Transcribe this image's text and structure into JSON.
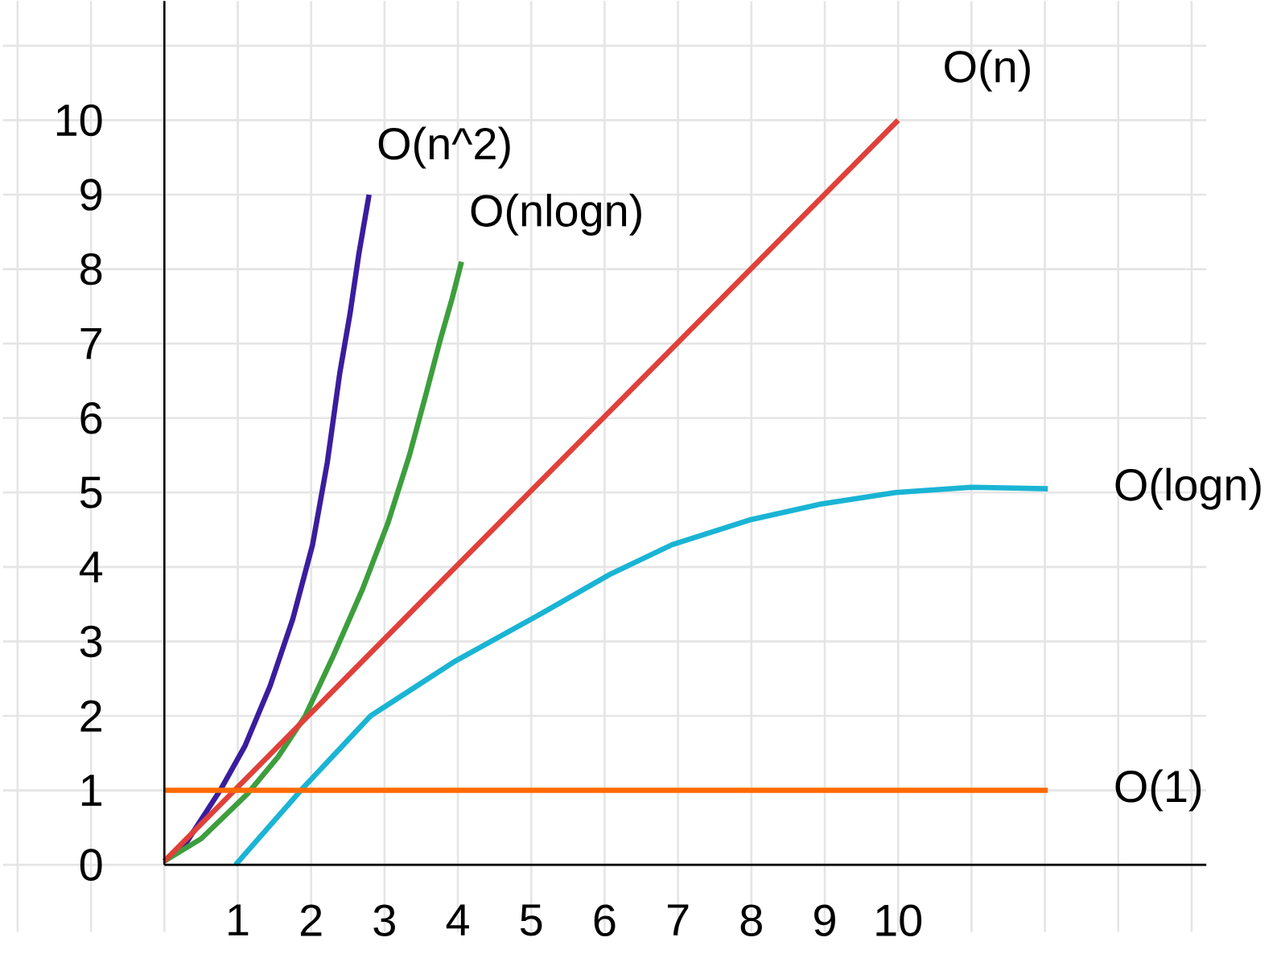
{
  "chart_data": {
    "type": "line",
    "xlim": [
      -2.2,
      14.2
    ],
    "ylim": [
      -0.9,
      11.6
    ],
    "xticks": [
      {
        "value": -2,
        "label": null
      },
      {
        "value": -1,
        "label": null
      },
      {
        "value": 0,
        "label": null
      },
      1,
      2,
      3,
      4,
      5,
      6,
      7,
      8,
      9,
      10,
      {
        "value": 11,
        "label": null
      },
      {
        "value": 12,
        "label": null
      },
      {
        "value": 13,
        "label": null
      },
      {
        "value": 14,
        "label": null
      }
    ],
    "yticks": [
      0,
      1,
      2,
      3,
      4,
      5,
      6,
      7,
      8,
      9,
      10,
      {
        "value": 11,
        "label": null
      }
    ],
    "grid": true,
    "legend": false,
    "marker": "none",
    "line_style": "solid",
    "series": [
      {
        "name": "O(n^2)",
        "color": "#3a1d9e",
        "x": [
          0,
          0.3,
          0.76,
          1.1,
          1.44,
          1.75,
          2.02,
          2.22,
          2.39,
          2.53,
          2.65,
          2.79
        ],
        "values": [
          0.05,
          0.3,
          1.0,
          1.6,
          2.4,
          3.3,
          4.3,
          5.4,
          6.6,
          7.4,
          8.2,
          9.0
        ]
      },
      {
        "name": "O(nlogn)",
        "color": "#3d9e3d",
        "x": [
          0,
          0.5,
          1.13,
          1.55,
          1.92,
          2.3,
          2.7,
          3.05,
          3.34,
          3.56,
          3.76,
          3.92,
          4.05
        ],
        "values": [
          0.05,
          0.35,
          0.95,
          1.45,
          2.0,
          2.8,
          3.7,
          4.6,
          5.5,
          6.3,
          7.05,
          7.6,
          8.1
        ]
      },
      {
        "name": "O(n)",
        "color": "#e0403a",
        "x": [
          0,
          10
        ],
        "values": [
          0.05,
          10
        ]
      },
      {
        "name": "O(logn)",
        "color": "#1ab4d4",
        "x": [
          0.97,
          1.86,
          2.81,
          3.97,
          5.13,
          6.07,
          6.92,
          7.97,
          8.92,
          9.97,
          11.0,
          12.04
        ],
        "values": [
          0,
          1.0,
          2.0,
          2.74,
          3.37,
          3.9,
          4.3,
          4.63,
          4.84,
          5.0,
          5.07,
          5.05
        ]
      },
      {
        "name": "O(1)",
        "color": "#ff6a00",
        "x": [
          0,
          12.04
        ],
        "values": [
          1,
          1
        ]
      }
    ]
  }
}
